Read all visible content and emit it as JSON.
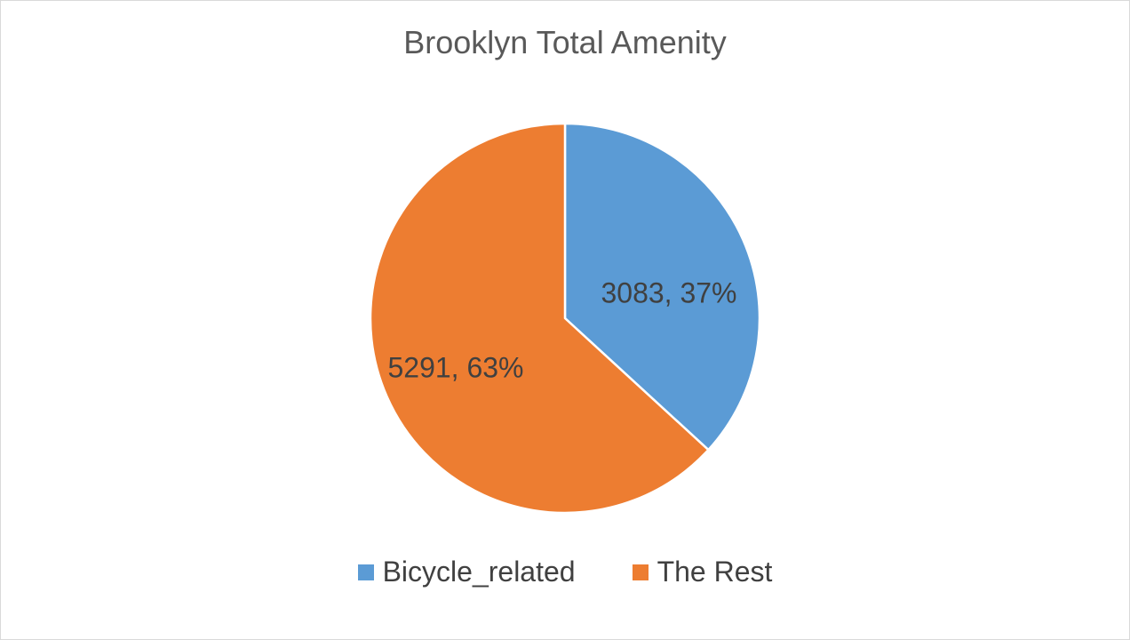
{
  "chart_data": {
    "type": "pie",
    "title": "Brooklyn Total Amenity",
    "categories": [
      "Bicycle_related",
      "The Rest"
    ],
    "values": [
      3083,
      5291
    ],
    "percent_labels": [
      "37%",
      "63%"
    ],
    "data_labels": [
      "3083, 37%",
      "5291, 63%"
    ],
    "colors": [
      "#5b9bd5",
      "#ed7d31"
    ],
    "start_angle": "12 o'clock",
    "direction": "clockwise",
    "legend_position": "bottom"
  },
  "legend": {
    "items": [
      {
        "label": "Bicycle_related",
        "color": "#5b9bd5"
      },
      {
        "label": "The Rest",
        "color": "#ed7d31"
      }
    ]
  }
}
